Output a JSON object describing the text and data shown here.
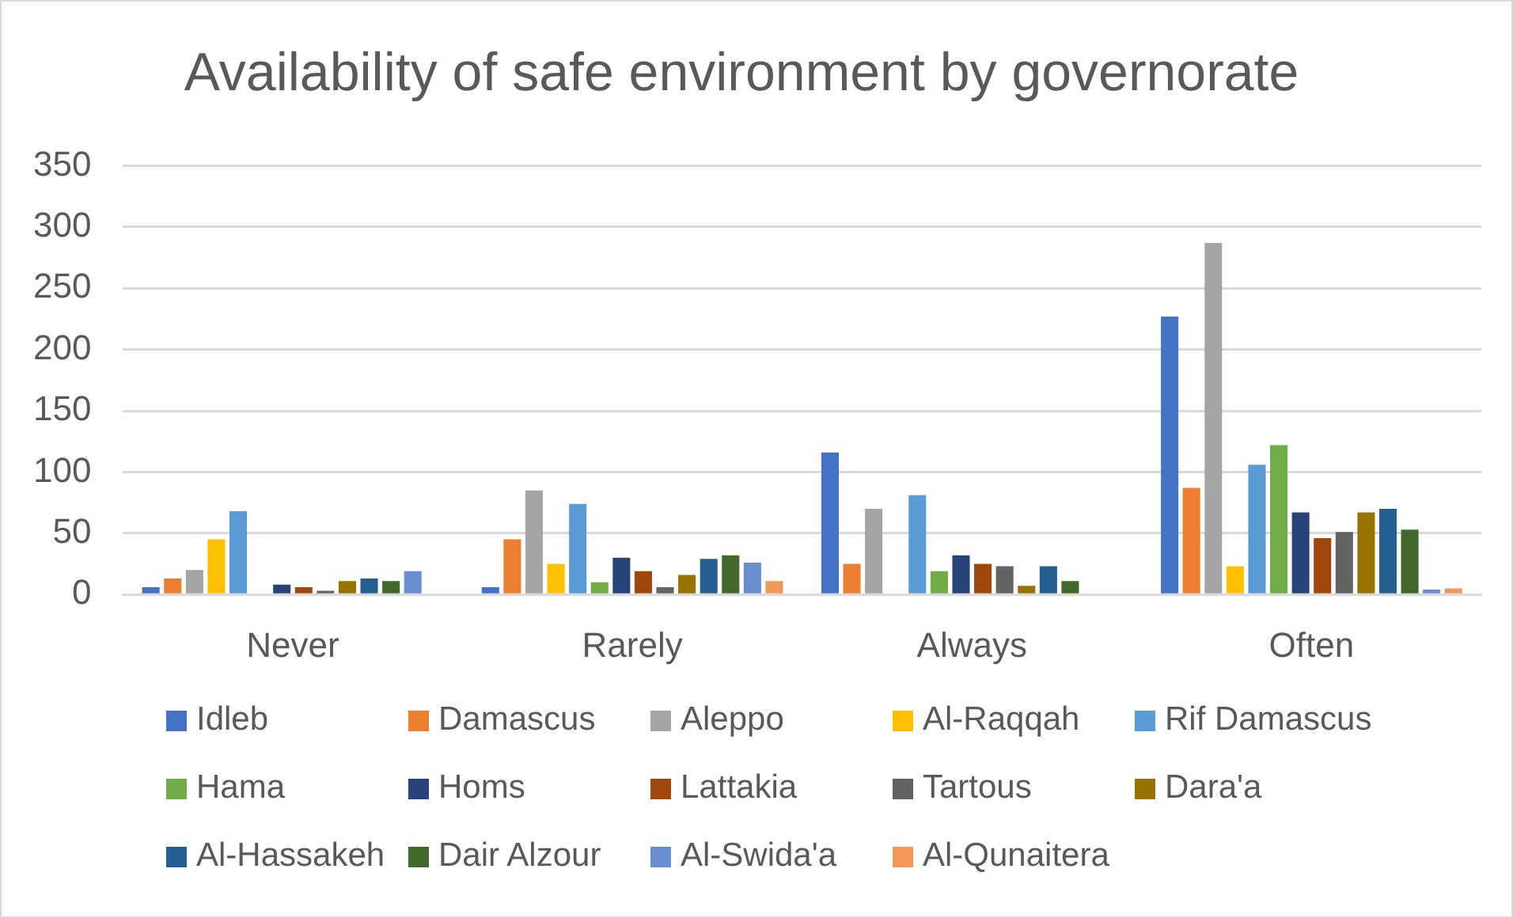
{
  "chart_data": {
    "type": "bar",
    "title": "Availability of safe environment by governorate",
    "categories": [
      "Never",
      "Rarely",
      "Always",
      "Often"
    ],
    "series": [
      {
        "name": "Idleb",
        "color": "#4472c4",
        "values": [
          6,
          6,
          116,
          227
        ]
      },
      {
        "name": "Damascus",
        "color": "#ed7d31",
        "values": [
          13,
          45,
          25,
          87
        ]
      },
      {
        "name": "Aleppo",
        "color": "#a5a5a5",
        "values": [
          20,
          85,
          70,
          287
        ]
      },
      {
        "name": "Al-Raqqah",
        "color": "#ffc000",
        "values": [
          45,
          25,
          0,
          23
        ]
      },
      {
        "name": "Rif Damascus",
        "color": "#5b9bd5",
        "values": [
          68,
          74,
          81,
          106
        ]
      },
      {
        "name": "Hama",
        "color": "#70ad47",
        "values": [
          0,
          10,
          19,
          122
        ]
      },
      {
        "name": "Homs",
        "color": "#264478",
        "values": [
          8,
          30,
          32,
          67
        ]
      },
      {
        "name": "Lattakia",
        "color": "#9e480e",
        "values": [
          6,
          19,
          25,
          46
        ]
      },
      {
        "name": "Tartous",
        "color": "#636363",
        "values": [
          3,
          6,
          23,
          51
        ]
      },
      {
        "name": "Dara'a",
        "color": "#997300",
        "values": [
          11,
          16,
          7,
          67
        ]
      },
      {
        "name": "Al-Hassakeh",
        "color": "#255e91",
        "values": [
          13,
          29,
          23,
          70
        ]
      },
      {
        "name": "Dair Alzour",
        "color": "#43682b",
        "values": [
          11,
          32,
          11,
          53
        ]
      },
      {
        "name": "Al-Swida'a",
        "color": "#698ed0",
        "values": [
          19,
          26,
          0,
          4
        ]
      },
      {
        "name": "Al-Qunaitera",
        "color": "#f1975a",
        "values": [
          0,
          11,
          0,
          5
        ]
      }
    ],
    "ylim": [
      0,
      350
    ],
    "yticks": [
      0,
      50,
      100,
      150,
      200,
      250,
      300,
      350
    ],
    "grid": "y",
    "legend": "bottom"
  }
}
